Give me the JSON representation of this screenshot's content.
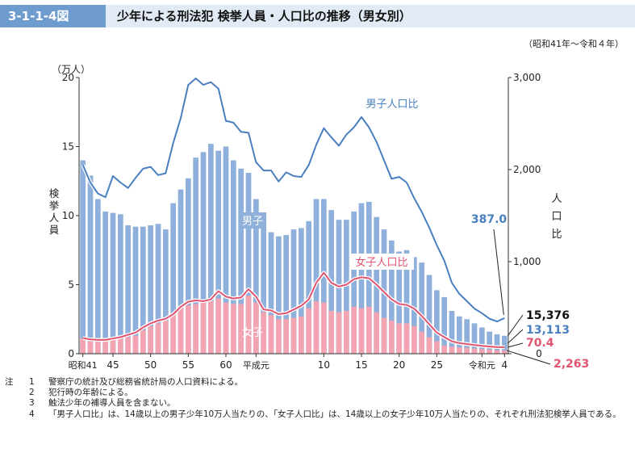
{
  "header": {
    "figure_id": "3-1-1-4図",
    "title": "少年による刑法犯 検挙人員・人口比の推移（男女別）"
  },
  "period": "（昭和41年〜令和４年）",
  "chart_data": {
    "type": "bar+line",
    "y_left": {
      "unit": "（万人）",
      "label": "検挙人員",
      "lim": [
        0,
        20
      ],
      "ticks": [
        0,
        5,
        10,
        15,
        20
      ]
    },
    "y_right": {
      "label": "人口比",
      "lim": [
        0,
        3000
      ],
      "ticks": [
        0,
        1000,
        2000,
        3000
      ],
      "tick_labels": [
        "0",
        "1,000",
        "2,000",
        "3,000"
      ]
    },
    "x_ticks": [
      {
        "year": 1966,
        "label": "昭和41"
      },
      {
        "year": 1970,
        "label": "45"
      },
      {
        "year": 1975,
        "label": "50"
      },
      {
        "year": 1980,
        "label": "55"
      },
      {
        "year": 1985,
        "label": "60"
      },
      {
        "year": 1989,
        "label": "平成元"
      },
      {
        "year": 1998,
        "label": "10"
      },
      {
        "year": 2003,
        "label": "15"
      },
      {
        "year": 2008,
        "label": "20"
      },
      {
        "year": 2013,
        "label": "25"
      },
      {
        "year": 2019,
        "label": "令和元"
      },
      {
        "year": 2022,
        "label": "4"
      }
    ],
    "years": [
      1966,
      1967,
      1968,
      1969,
      1970,
      1971,
      1972,
      1973,
      1974,
      1975,
      1976,
      1977,
      1978,
      1979,
      1980,
      1981,
      1982,
      1983,
      1984,
      1985,
      1986,
      1987,
      1988,
      1989,
      1990,
      1991,
      1992,
      1993,
      1994,
      1995,
      1996,
      1997,
      1998,
      1999,
      2000,
      2001,
      2002,
      2003,
      2004,
      2005,
      2006,
      2007,
      2008,
      2009,
      2010,
      2011,
      2012,
      2013,
      2014,
      2015,
      2016,
      2017,
      2018,
      2019,
      2020,
      2021,
      2022
    ],
    "male_persons_10k": [
      14.0,
      12.9,
      11.2,
      10.3,
      10.2,
      10.1,
      9.3,
      9.2,
      9.2,
      9.3,
      9.4,
      9.0,
      10.9,
      11.9,
      12.7,
      14.2,
      14.6,
      15.2,
      14.7,
      15.0,
      14.0,
      13.4,
      13.1,
      11.2,
      9.1,
      8.8,
      8.5,
      8.6,
      9.0,
      9.1,
      9.6,
      11.2,
      11.2,
      10.4,
      9.7,
      9.7,
      10.3,
      10.9,
      11.0,
      9.9,
      9.0,
      8.2,
      7.4,
      7.5,
      7.0,
      6.6,
      5.7,
      4.6,
      4.1,
      3.1,
      2.7,
      2.5,
      2.2,
      1.9,
      1.6,
      1.4,
      1.3
    ],
    "female_persons_10k": [
      1.1,
      1.0,
      1.0,
      1.0,
      1.1,
      1.2,
      1.2,
      1.3,
      1.7,
      2.0,
      2.2,
      2.4,
      2.8,
      3.4,
      3.5,
      3.6,
      3.7,
      3.8,
      4.0,
      3.7,
      3.6,
      3.6,
      4.2,
      3.7,
      3.0,
      2.8,
      2.5,
      2.5,
      2.6,
      2.7,
      3.3,
      3.8,
      3.7,
      3.1,
      3.0,
      3.1,
      3.4,
      3.3,
      3.4,
      3.0,
      2.6,
      2.4,
      2.2,
      2.2,
      2.0,
      1.6,
      1.2,
      0.9,
      0.6,
      0.5,
      0.45,
      0.43,
      0.38,
      0.33,
      0.3,
      0.26,
      0.23
    ],
    "male_rate": [
      2050,
      1860,
      1740,
      1700,
      1930,
      1860,
      1800,
      1910,
      2010,
      2030,
      1940,
      1960,
      2290,
      2560,
      2920,
      2990,
      2920,
      2950,
      2880,
      2530,
      2510,
      2410,
      2400,
      2080,
      1990,
      1990,
      1870,
      1970,
      1930,
      1920,
      2050,
      2270,
      2450,
      2350,
      2260,
      2380,
      2460,
      2570,
      2460,
      2300,
      2100,
      1900,
      1920,
      1860,
      1690,
      1540,
      1370,
      1180,
      1010,
      770,
      650,
      570,
      490,
      440,
      380,
      350,
      387.0
    ],
    "female_rate": [
      170,
      155,
      150,
      150,
      165,
      180,
      205,
      230,
      285,
      330,
      360,
      380,
      430,
      510,
      565,
      580,
      570,
      590,
      680,
      620,
      600,
      610,
      700,
      620,
      480,
      470,
      430,
      440,
      480,
      520,
      590,
      770,
      880,
      770,
      730,
      750,
      810,
      830,
      820,
      750,
      670,
      590,
      540,
      530,
      490,
      410,
      320,
      230,
      180,
      135,
      115,
      105,
      95,
      85,
      78,
      72,
      70.4
    ],
    "series_labels": {
      "male_bar": "男子",
      "female_bar": "女子",
      "male_rate": "男子人口比",
      "female_rate": "女子人口比"
    },
    "annotations": {
      "male_rate_last": "387.0",
      "total_last": "15,376",
      "male_last": "13,113",
      "female_rate_last": "70.4",
      "female_last": "2,263"
    },
    "colors": {
      "male_bar": "#8fb0db",
      "female_bar": "#f2a4b2",
      "male_rate": "#4a7fbf",
      "female_rate": "#e0546f",
      "male_text": "#4a7fbf",
      "female_text": "#e0546f"
    }
  },
  "notes": {
    "head": "注",
    "items": [
      {
        "num": "1",
        "text": "警察庁の統計及び総務省統計局の人口資料による。"
      },
      {
        "num": "2",
        "text": "犯行時の年齢による。"
      },
      {
        "num": "3",
        "text": "触法少年の補導人員を含まない。"
      },
      {
        "num": "4",
        "text": "「男子人口比」は、14歳以上の男子少年10万人当たりの、「女子人口比」は、14歳以上の女子少年10万人当たりの、それぞれ刑法犯検挙人員である。"
      }
    ]
  }
}
